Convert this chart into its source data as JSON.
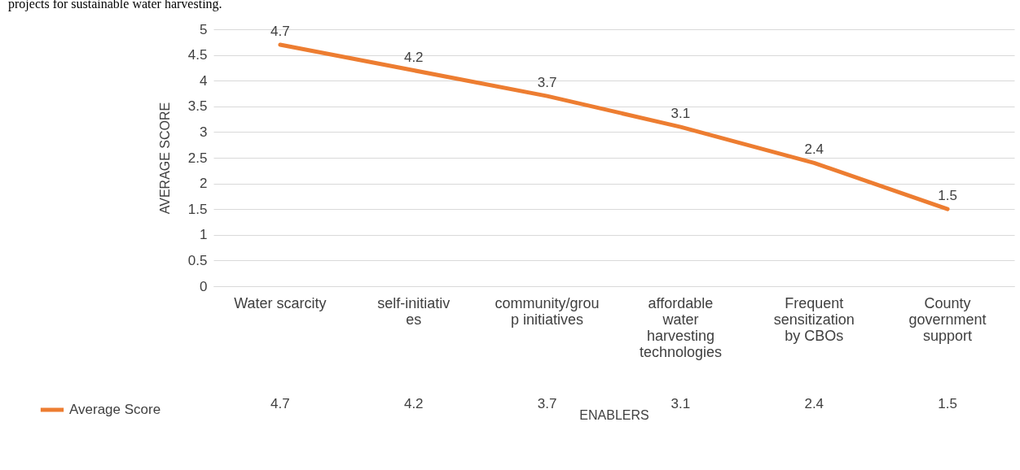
{
  "chart_data": {
    "type": "line",
    "annotations": [
      "projects for sustainable water harvesting.",
      {
        "text": "4.7",
        "x": "Water scarcity",
        "y": 4.7
      },
      {
        "text": "4.2",
        "x": "self-initiatives",
        "y": 4.2
      },
      {
        "text": "3.7",
        "x": "community/group initiatives",
        "y": 3.7
      },
      {
        "text": "3.1",
        "x": "affordable water harvesting technologies",
        "y": 3.1
      },
      {
        "text": "2.4",
        "x": "Frequent sensitization by CBOs",
        "y": 2.4
      },
      {
        "text": "1.5",
        "x": "County government support",
        "y": 1.5
      }
    ],
    "xlabel": "ENABLERS",
    "ylabel": "AVERAGE SCORE",
    "categories": [
      "Water scarcity",
      "self-initiatives",
      "community/group initiatives",
      "affordable water harvesting technologies",
      "Frequent sensitization by CBOs",
      "County government support"
    ],
    "series": [
      {
        "name": "Average Score",
        "color": "#ed7d31",
        "values": [
          4.7,
          4.2,
          3.7,
          3.1,
          2.4,
          1.5
        ]
      }
    ],
    "ylim": [
      0,
      5
    ],
    "yticks": [
      0,
      0.5,
      1,
      1.5,
      2,
      2.5,
      3,
      3.5,
      4,
      4.5,
      5
    ],
    "grid": "y",
    "legend": "bottom left",
    "data_labels": true,
    "marker": "none",
    "line_style": "solid"
  }
}
